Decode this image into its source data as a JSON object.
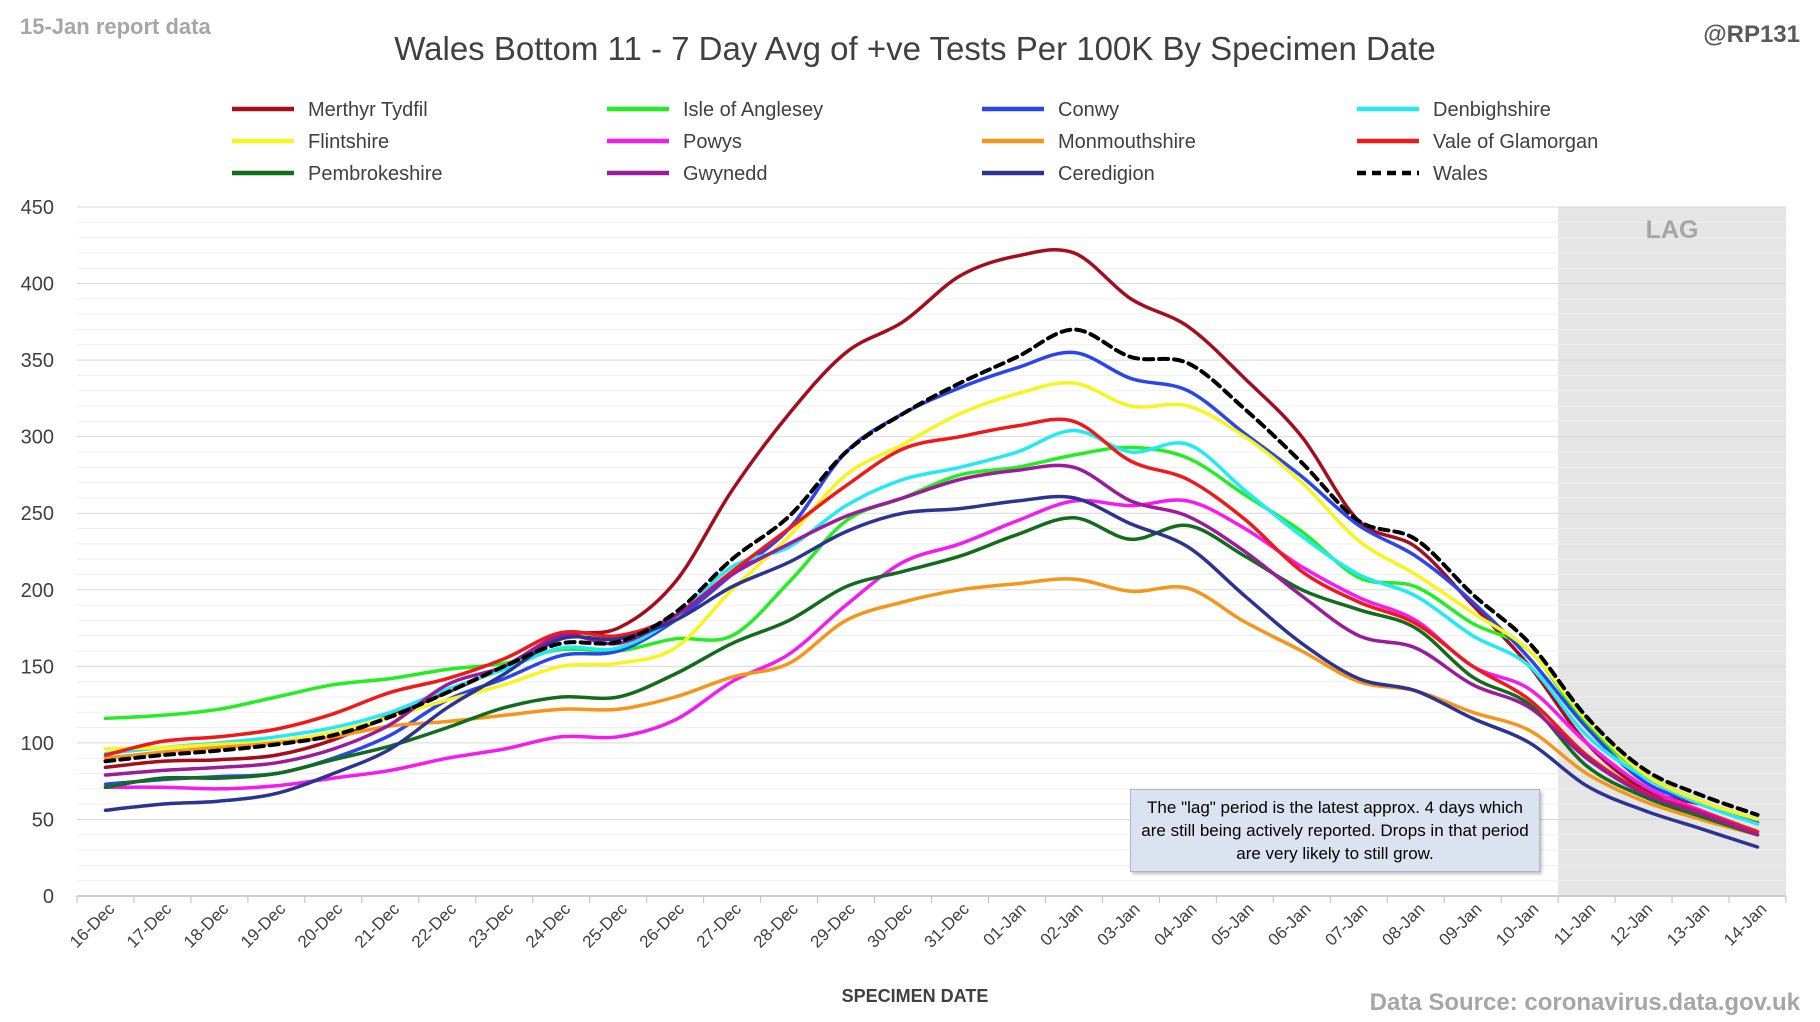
{
  "header": {
    "report_label": "15-Jan report data",
    "handle": "@RP131",
    "source": "Data Source: coronavirus.data.gov.uk"
  },
  "lag_note": "The \"lag\" period is the latest approx. 4 days which are still being actively reported.  Drops in that period are very likely to still grow.",
  "chart_data": {
    "type": "line",
    "title": "Wales Bottom 11 - 7 Day Avg of +ve Tests Per 100K By Specimen Date",
    "xlabel": "SPECIMEN DATE",
    "ylabel": "",
    "ylim": [
      0,
      450
    ],
    "yticks": [
      0,
      50,
      100,
      150,
      200,
      250,
      300,
      350,
      400,
      450
    ],
    "grid": true,
    "legend_position": "top",
    "lag_label": "LAG",
    "lag_start": "11-Jan",
    "categories": [
      "16-Dec",
      "17-Dec",
      "18-Dec",
      "19-Dec",
      "20-Dec",
      "21-Dec",
      "22-Dec",
      "23-Dec",
      "24-Dec",
      "25-Dec",
      "26-Dec",
      "27-Dec",
      "28-Dec",
      "29-Dec",
      "30-Dec",
      "31-Dec",
      "01-Jan",
      "02-Jan",
      "03-Jan",
      "04-Jan",
      "05-Jan",
      "06-Jan",
      "07-Jan",
      "08-Jan",
      "09-Jan",
      "10-Jan",
      "11-Jan",
      "12-Jan",
      "13-Jan",
      "14-Jan"
    ],
    "series": [
      {
        "name": "Merthyr Tydfil",
        "color": "#a50d1f",
        "dashed": false,
        "values": [
          84,
          88,
          89,
          92,
          102,
          118,
          133,
          150,
          170,
          175,
          205,
          265,
          315,
          355,
          375,
          405,
          418,
          420,
          390,
          372,
          338,
          300,
          245,
          228,
          190,
          150,
          100,
          70,
          60,
          50
        ]
      },
      {
        "name": "Isle of Anglesey",
        "color": "#22ee22",
        "dashed": false,
        "values": [
          116,
          118,
          122,
          130,
          138,
          142,
          148,
          152,
          161,
          160,
          168,
          170,
          205,
          245,
          260,
          275,
          280,
          288,
          293,
          286,
          262,
          238,
          208,
          202,
          178,
          160,
          112,
          80,
          62,
          50
        ]
      },
      {
        "name": "Conwy",
        "color": "#2b45ee",
        "dashed": false,
        "values": [
          73,
          76,
          78,
          80,
          90,
          105,
          128,
          142,
          157,
          160,
          180,
          210,
          240,
          290,
          315,
          332,
          345,
          355,
          338,
          330,
          302,
          274,
          242,
          222,
          192,
          155,
          110,
          75,
          60,
          48
        ]
      },
      {
        "name": "Denbighshire",
        "color": "#22eaf2",
        "dashed": false,
        "values": [
          93,
          97,
          100,
          104,
          110,
          120,
          135,
          148,
          162,
          162,
          182,
          215,
          228,
          255,
          272,
          280,
          290,
          304,
          290,
          295,
          265,
          235,
          210,
          196,
          170,
          150,
          105,
          78,
          60,
          47
        ]
      },
      {
        "name": "Flintshire",
        "color": "#f6f51e",
        "dashed": false,
        "values": [
          96,
          97,
          99,
          101,
          107,
          117,
          128,
          138,
          150,
          152,
          162,
          200,
          235,
          275,
          295,
          315,
          328,
          335,
          320,
          320,
          300,
          270,
          232,
          210,
          185,
          160,
          115,
          80,
          62,
          50
        ]
      },
      {
        "name": "Powys",
        "color": "#f41bf2",
        "dashed": false,
        "values": [
          71,
          71,
          70,
          72,
          77,
          82,
          90,
          96,
          104,
          104,
          115,
          140,
          158,
          190,
          218,
          230,
          245,
          258,
          255,
          258,
          240,
          215,
          195,
          180,
          150,
          135,
          100,
          72,
          56,
          42
        ]
      },
      {
        "name": "Monmouthshire",
        "color": "#f5961b",
        "dashed": false,
        "values": [
          90,
          94,
          97,
          100,
          104,
          111,
          114,
          118,
          122,
          122,
          130,
          143,
          152,
          180,
          192,
          200,
          204,
          207,
          199,
          201,
          179,
          160,
          140,
          134,
          120,
          108,
          80,
          62,
          50,
          40
        ]
      },
      {
        "name": "Vale of Glamorgan",
        "color": "#f01818",
        "dashed": false,
        "values": [
          92,
          101,
          104,
          109,
          119,
          133,
          142,
          155,
          172,
          170,
          183,
          212,
          240,
          268,
          292,
          300,
          307,
          310,
          284,
          272,
          246,
          212,
          192,
          178,
          150,
          128,
          92,
          68,
          55,
          42
        ]
      },
      {
        "name": "Pembrokeshire",
        "color": "#116c1b",
        "dashed": false,
        "values": [
          71,
          77,
          77,
          80,
          89,
          98,
          110,
          123,
          130,
          130,
          145,
          165,
          180,
          202,
          212,
          222,
          236,
          247,
          233,
          242,
          222,
          200,
          187,
          175,
          143,
          125,
          85,
          65,
          52,
          40
        ]
      },
      {
        "name": "Gwynedd",
        "color": "#9b1b9b",
        "dashed": false,
        "values": [
          79,
          82,
          84,
          87,
          96,
          112,
          138,
          150,
          170,
          165,
          183,
          210,
          230,
          248,
          260,
          272,
          278,
          280,
          258,
          248,
          225,
          196,
          170,
          162,
          138,
          123,
          90,
          67,
          54,
          40
        ]
      },
      {
        "name": "Ceredigion",
        "color": "#2c3390",
        "dashed": false,
        "values": [
          56,
          60,
          62,
          67,
          80,
          96,
          123,
          145,
          168,
          168,
          180,
          202,
          218,
          238,
          250,
          253,
          258,
          260,
          243,
          228,
          196,
          165,
          142,
          134,
          116,
          100,
          72,
          56,
          44,
          32
        ]
      },
      {
        "name": "Wales",
        "color": "#000000",
        "dashed": true,
        "values": [
          88,
          92,
          95,
          99,
          105,
          117,
          133,
          150,
          165,
          166,
          185,
          220,
          248,
          290,
          315,
          335,
          352,
          370,
          352,
          348,
          318,
          283,
          245,
          233,
          197,
          165,
          117,
          83,
          66,
          53
        ]
      }
    ]
  }
}
